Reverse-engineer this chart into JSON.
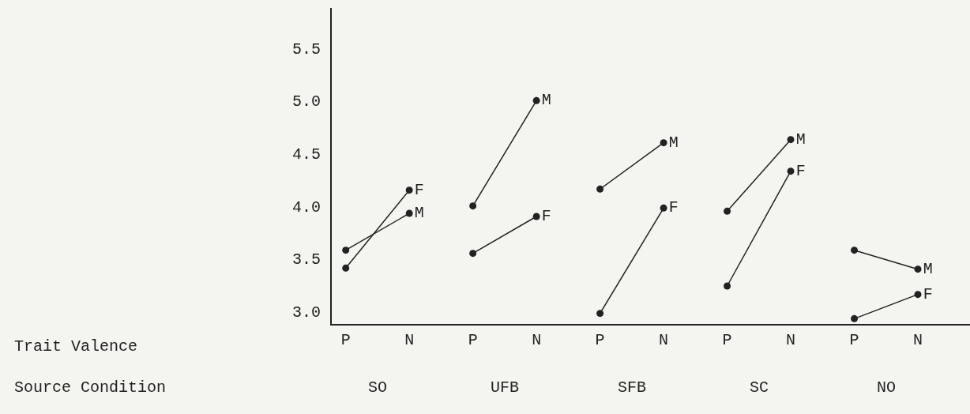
{
  "chart_data": {
    "type": "line",
    "categories": [
      "P",
      "N",
      "P",
      "N",
      "P",
      "N",
      "P",
      "N",
      "P",
      "N"
    ],
    "series": [
      {
        "name": "M",
        "color": "#222222",
        "values": [
          3.58,
          3.93,
          null,
          null,
          null,
          null,
          null,
          null,
          null,
          null
        ]
      },
      {
        "name": "F",
        "color": "#222222",
        "values": [
          3.41,
          4.15,
          null,
          null,
          null,
          null,
          null,
          null,
          null,
          null
        ]
      },
      {
        "name": "M",
        "color": "#222222",
        "values": [
          null,
          null,
          4.0,
          5.0,
          null,
          null,
          null,
          null,
          null,
          null
        ]
      },
      {
        "name": "F",
        "color": "#222222",
        "values": [
          null,
          null,
          3.55,
          3.9,
          null,
          null,
          null,
          null,
          null,
          null
        ]
      },
      {
        "name": "M",
        "color": "#222222",
        "values": [
          null,
          null,
          null,
          null,
          4.16,
          4.6,
          null,
          null,
          null,
          null
        ]
      },
      {
        "name": "F",
        "color": "#222222",
        "values": [
          null,
          null,
          null,
          null,
          2.98,
          3.98,
          null,
          null,
          null,
          null
        ]
      },
      {
        "name": "M",
        "color": "#222222",
        "values": [
          null,
          null,
          null,
          null,
          null,
          null,
          3.95,
          4.63,
          null,
          null
        ]
      },
      {
        "name": "F",
        "color": "#222222",
        "values": [
          null,
          null,
          null,
          null,
          null,
          null,
          3.24,
          4.33,
          null,
          null
        ]
      },
      {
        "name": "M",
        "color": "#222222",
        "values": [
          null,
          null,
          null,
          null,
          null,
          null,
          null,
          null,
          3.58,
          3.4
        ]
      },
      {
        "name": "F",
        "color": "#222222",
        "values": [
          null,
          null,
          null,
          null,
          null,
          null,
          null,
          null,
          2.93,
          3.16
        ]
      }
    ],
    "annotations": [
      "Trait Valence",
      "Source Condition",
      "SO",
      "UFB",
      "SFB",
      "SC",
      "NO"
    ],
    "ylim": [
      2.88,
      5.88
    ],
    "yticks": [
      {
        "value": 3.0,
        "label": "3.0"
      },
      {
        "value": 3.5,
        "label": "3.5"
      },
      {
        "value": 4.0,
        "label": "4.0"
      },
      {
        "value": 4.5,
        "label": "4.5"
      },
      {
        "value": 5.0,
        "label": "5.0"
      },
      {
        "value": 5.5,
        "label": "5.5"
      }
    ],
    "grid": false,
    "legend": false,
    "marker": "circle",
    "line_style": "solid"
  }
}
